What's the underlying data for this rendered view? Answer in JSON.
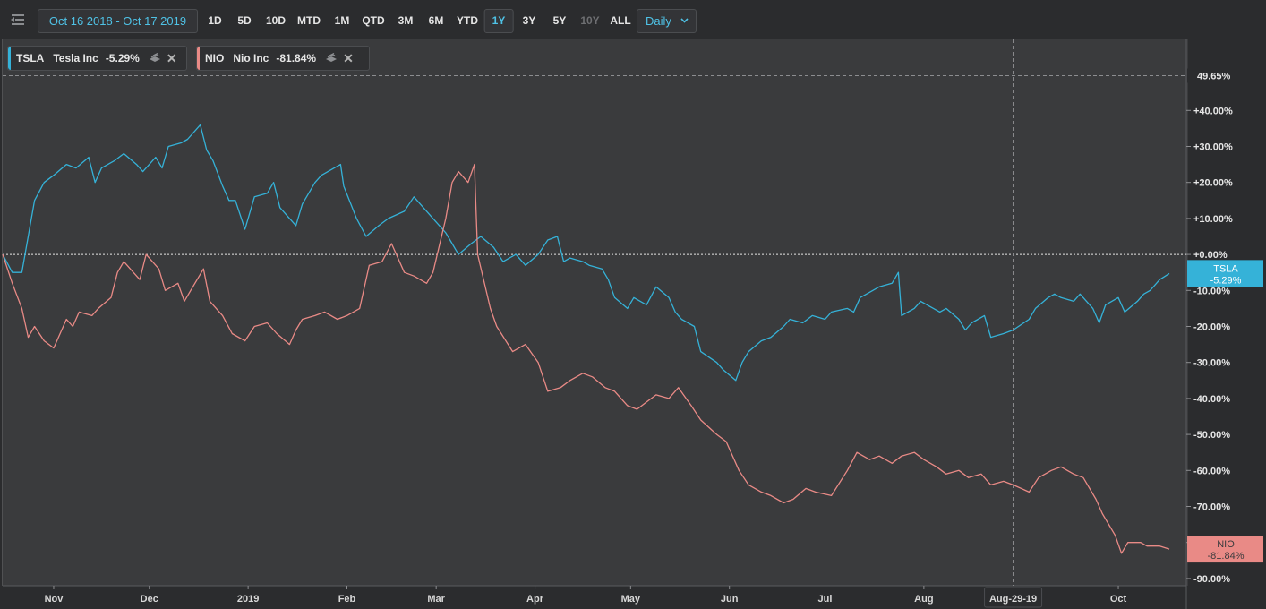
{
  "toolbar": {
    "date_range": "Oct 16 2018 - Oct 17 2019",
    "periods": [
      "1D",
      "5D",
      "10D",
      "MTD",
      "1M",
      "QTD",
      "3M",
      "6M",
      "YTD",
      "1Y",
      "3Y",
      "5Y",
      "10Y",
      "ALL"
    ],
    "active_period": "1Y",
    "disabled_periods": [
      "10Y"
    ],
    "interval": "Daily",
    "accent_color": "#4fc2e6"
  },
  "legend": [
    {
      "symbol": "TSLA",
      "name": "Tesla Inc",
      "change": "-5.29%",
      "color": "#35b2d8"
    },
    {
      "symbol": "NIO",
      "name": "Nio Inc",
      "change": "-81.84%",
      "color": "#e98a86"
    }
  ],
  "chart_data": {
    "type": "line",
    "y_unit": "% change",
    "ylim": [
      -92,
      52
    ],
    "y_ticks": [
      {
        "value": 40,
        "label": "+40.00%"
      },
      {
        "value": 30,
        "label": "+30.00%"
      },
      {
        "value": 20,
        "label": "+20.00%"
      },
      {
        "value": 10,
        "label": "+10.00%"
      },
      {
        "value": 0,
        "label": "+0.00%"
      },
      {
        "value": -10,
        "label": "-10.00%"
      },
      {
        "value": -20,
        "label": "-20.00%"
      },
      {
        "value": -30,
        "label": "-30.00%"
      },
      {
        "value": -40,
        "label": "-40.00%"
      },
      {
        "value": -50,
        "label": "-50.00%"
      },
      {
        "value": -60,
        "label": "-60.00%"
      },
      {
        "value": -70,
        "label": "-70.00%"
      },
      {
        "value": -80,
        "label": "-80.00%"
      },
      {
        "value": -90,
        "label": "-90.00%"
      }
    ],
    "x_range": [
      "2018-10-16",
      "2019-10-17"
    ],
    "x_ticks": [
      {
        "date": "2018-11-01",
        "label": "Nov"
      },
      {
        "date": "2018-12-01",
        "label": "Dec"
      },
      {
        "date": "2019-01-01",
        "label": "2019"
      },
      {
        "date": "2019-02-01",
        "label": "Feb"
      },
      {
        "date": "2019-03-01",
        "label": "Mar"
      },
      {
        "date": "2019-04-01",
        "label": "Apr"
      },
      {
        "date": "2019-05-01",
        "label": "May"
      },
      {
        "date": "2019-06-01",
        "label": "Jun"
      },
      {
        "date": "2019-07-01",
        "label": "Jul"
      },
      {
        "date": "2019-08-01",
        "label": "Aug"
      },
      {
        "date": "2019-10-01",
        "label": "Oct"
      }
    ],
    "crosshair": {
      "date": "2019-08-29",
      "label": "Aug-29-19",
      "value": 49.65,
      "value_label": "49.65%"
    },
    "series": [
      {
        "name": "TSLA",
        "color": "#35b2d8",
        "last_label": "-5.29%",
        "points": [
          [
            "2018-10-16",
            0
          ],
          [
            "2018-10-19",
            -5
          ],
          [
            "2018-10-22",
            -5
          ],
          [
            "2018-10-24",
            5
          ],
          [
            "2018-10-26",
            15
          ],
          [
            "2018-10-29",
            20
          ],
          [
            "2018-11-01",
            22
          ],
          [
            "2018-11-05",
            25
          ],
          [
            "2018-11-08",
            24
          ],
          [
            "2018-11-12",
            27
          ],
          [
            "2018-11-14",
            20
          ],
          [
            "2018-11-16",
            24
          ],
          [
            "2018-11-20",
            26
          ],
          [
            "2018-11-23",
            28
          ],
          [
            "2018-11-27",
            25
          ],
          [
            "2018-11-29",
            23
          ],
          [
            "2018-12-03",
            27
          ],
          [
            "2018-12-05",
            24
          ],
          [
            "2018-12-07",
            30
          ],
          [
            "2018-12-11",
            31
          ],
          [
            "2018-12-13",
            32
          ],
          [
            "2018-12-17",
            36
          ],
          [
            "2018-12-19",
            29
          ],
          [
            "2018-12-21",
            26
          ],
          [
            "2018-12-24",
            19
          ],
          [
            "2018-12-26",
            15
          ],
          [
            "2018-12-28",
            15
          ],
          [
            "2018-12-31",
            7
          ],
          [
            "2019-01-03",
            16
          ],
          [
            "2019-01-07",
            17
          ],
          [
            "2019-01-09",
            20
          ],
          [
            "2019-01-11",
            13
          ],
          [
            "2019-01-14",
            10
          ],
          [
            "2019-01-16",
            8
          ],
          [
            "2019-01-18",
            14
          ],
          [
            "2019-01-22",
            20
          ],
          [
            "2019-01-24",
            22
          ],
          [
            "2019-01-28",
            24
          ],
          [
            "2019-01-30",
            25
          ],
          [
            "2019-01-31",
            19
          ],
          [
            "2019-02-04",
            10
          ],
          [
            "2019-02-07",
            5
          ],
          [
            "2019-02-11",
            8
          ],
          [
            "2019-02-14",
            10
          ],
          [
            "2019-02-19",
            12
          ],
          [
            "2019-02-22",
            16
          ],
          [
            "2019-02-26",
            12
          ],
          [
            "2019-02-28",
            10
          ],
          [
            "2019-03-04",
            6
          ],
          [
            "2019-03-06",
            3
          ],
          [
            "2019-03-08",
            0
          ],
          [
            "2019-03-12",
            3
          ],
          [
            "2019-03-15",
            5
          ],
          [
            "2019-03-19",
            2
          ],
          [
            "2019-03-22",
            -2
          ],
          [
            "2019-03-26",
            0
          ],
          [
            "2019-03-29",
            -3
          ],
          [
            "2019-04-02",
            0
          ],
          [
            "2019-04-05",
            4
          ],
          [
            "2019-04-08",
            5
          ],
          [
            "2019-04-10",
            -2
          ],
          [
            "2019-04-12",
            -1
          ],
          [
            "2019-04-16",
            -2
          ],
          [
            "2019-04-18",
            -3
          ],
          [
            "2019-04-22",
            -4
          ],
          [
            "2019-04-24",
            -7
          ],
          [
            "2019-04-26",
            -12
          ],
          [
            "2019-04-30",
            -15
          ],
          [
            "2019-05-02",
            -12
          ],
          [
            "2019-05-06",
            -14
          ],
          [
            "2019-05-09",
            -9
          ],
          [
            "2019-05-13",
            -12
          ],
          [
            "2019-05-15",
            -16
          ],
          [
            "2019-05-17",
            -18
          ],
          [
            "2019-05-21",
            -20
          ],
          [
            "2019-05-23",
            -27
          ],
          [
            "2019-05-28",
            -30
          ],
          [
            "2019-05-30",
            -32
          ],
          [
            "2019-06-03",
            -35
          ],
          [
            "2019-06-05",
            -30
          ],
          [
            "2019-06-07",
            -27
          ],
          [
            "2019-06-11",
            -24
          ],
          [
            "2019-06-14",
            -23
          ],
          [
            "2019-06-18",
            -20
          ],
          [
            "2019-06-20",
            -18
          ],
          [
            "2019-06-24",
            -19
          ],
          [
            "2019-06-27",
            -17
          ],
          [
            "2019-07-01",
            -18
          ],
          [
            "2019-07-03",
            -16
          ],
          [
            "2019-07-08",
            -15
          ],
          [
            "2019-07-10",
            -16
          ],
          [
            "2019-07-12",
            -12
          ],
          [
            "2019-07-16",
            -10
          ],
          [
            "2019-07-18",
            -9
          ],
          [
            "2019-07-22",
            -8
          ],
          [
            "2019-07-24",
            -5
          ],
          [
            "2019-07-25",
            -17
          ],
          [
            "2019-07-29",
            -15
          ],
          [
            "2019-07-31",
            -13
          ],
          [
            "2019-08-02",
            -14
          ],
          [
            "2019-08-06",
            -16
          ],
          [
            "2019-08-08",
            -15
          ],
          [
            "2019-08-12",
            -18
          ],
          [
            "2019-08-14",
            -21
          ],
          [
            "2019-08-16",
            -19
          ],
          [
            "2019-08-20",
            -17
          ],
          [
            "2019-08-22",
            -23
          ],
          [
            "2019-08-26",
            -22
          ],
          [
            "2019-08-29",
            -21
          ],
          [
            "2019-09-03",
            -18
          ],
          [
            "2019-09-05",
            -15
          ],
          [
            "2019-09-09",
            -12
          ],
          [
            "2019-09-11",
            -11
          ],
          [
            "2019-09-13",
            -12
          ],
          [
            "2019-09-17",
            -13
          ],
          [
            "2019-09-19",
            -11
          ],
          [
            "2019-09-23",
            -15
          ],
          [
            "2019-09-25",
            -19
          ],
          [
            "2019-09-27",
            -14
          ],
          [
            "2019-10-01",
            -12
          ],
          [
            "2019-10-03",
            -16
          ],
          [
            "2019-10-07",
            -13
          ],
          [
            "2019-10-09",
            -11
          ],
          [
            "2019-10-11",
            -10
          ],
          [
            "2019-10-14",
            -7
          ],
          [
            "2019-10-17",
            -5.29
          ]
        ]
      },
      {
        "name": "NIO",
        "color": "#e98a86",
        "last_label": "-81.84%",
        "points": [
          [
            "2018-10-16",
            0
          ],
          [
            "2018-10-19",
            -8
          ],
          [
            "2018-10-22",
            -15
          ],
          [
            "2018-10-24",
            -23
          ],
          [
            "2018-10-26",
            -20
          ],
          [
            "2018-10-29",
            -24
          ],
          [
            "2018-11-01",
            -26
          ],
          [
            "2018-11-05",
            -18
          ],
          [
            "2018-11-07",
            -20
          ],
          [
            "2018-11-09",
            -16
          ],
          [
            "2018-11-13",
            -17
          ],
          [
            "2018-11-15",
            -15
          ],
          [
            "2018-11-19",
            -12
          ],
          [
            "2018-11-21",
            -5
          ],
          [
            "2018-11-23",
            -2
          ],
          [
            "2018-11-26",
            -5
          ],
          [
            "2018-11-28",
            -7
          ],
          [
            "2018-11-30",
            0
          ],
          [
            "2018-12-04",
            -4
          ],
          [
            "2018-12-06",
            -10
          ],
          [
            "2018-12-10",
            -8
          ],
          [
            "2018-12-12",
            -13
          ],
          [
            "2018-12-14",
            -10
          ],
          [
            "2018-12-18",
            -4
          ],
          [
            "2018-12-20",
            -13
          ],
          [
            "2018-12-24",
            -17
          ],
          [
            "2018-12-27",
            -22
          ],
          [
            "2018-12-31",
            -24
          ],
          [
            "2019-01-03",
            -20
          ],
          [
            "2019-01-07",
            -19
          ],
          [
            "2019-01-10",
            -22
          ],
          [
            "2019-01-14",
            -25
          ],
          [
            "2019-01-16",
            -21
          ],
          [
            "2019-01-18",
            -18
          ],
          [
            "2019-01-22",
            -17
          ],
          [
            "2019-01-25",
            -16
          ],
          [
            "2019-01-29",
            -18
          ],
          [
            "2019-02-01",
            -17
          ],
          [
            "2019-02-05",
            -15
          ],
          [
            "2019-02-08",
            -3
          ],
          [
            "2019-02-12",
            -2
          ],
          [
            "2019-02-15",
            3
          ],
          [
            "2019-02-19",
            -5
          ],
          [
            "2019-02-22",
            -6
          ],
          [
            "2019-02-26",
            -8
          ],
          [
            "2019-02-28",
            -5
          ],
          [
            "2019-03-04",
            10
          ],
          [
            "2019-03-06",
            20
          ],
          [
            "2019-03-08",
            23
          ],
          [
            "2019-03-11",
            20
          ],
          [
            "2019-03-13",
            25
          ],
          [
            "2019-03-14",
            0
          ],
          [
            "2019-03-18",
            -15
          ],
          [
            "2019-03-20",
            -20
          ],
          [
            "2019-03-25",
            -27
          ],
          [
            "2019-03-27",
            -26
          ],
          [
            "2019-03-29",
            -25
          ],
          [
            "2019-04-02",
            -30
          ],
          [
            "2019-04-05",
            -38
          ],
          [
            "2019-04-09",
            -37
          ],
          [
            "2019-04-12",
            -35
          ],
          [
            "2019-04-16",
            -33
          ],
          [
            "2019-04-19",
            -34
          ],
          [
            "2019-04-23",
            -37
          ],
          [
            "2019-04-26",
            -38
          ],
          [
            "2019-04-30",
            -42
          ],
          [
            "2019-05-03",
            -43
          ],
          [
            "2019-05-06",
            -41
          ],
          [
            "2019-05-09",
            -39
          ],
          [
            "2019-05-13",
            -40
          ],
          [
            "2019-05-16",
            -37
          ],
          [
            "2019-05-20",
            -42
          ],
          [
            "2019-05-23",
            -46
          ],
          [
            "2019-05-28",
            -50
          ],
          [
            "2019-05-31",
            -52
          ],
          [
            "2019-06-04",
            -60
          ],
          [
            "2019-06-07",
            -64
          ],
          [
            "2019-06-11",
            -66
          ],
          [
            "2019-06-14",
            -67
          ],
          [
            "2019-06-18",
            -69
          ],
          [
            "2019-06-21",
            -68
          ],
          [
            "2019-06-25",
            -65
          ],
          [
            "2019-06-28",
            -66
          ],
          [
            "2019-07-03",
            -67
          ],
          [
            "2019-07-08",
            -60
          ],
          [
            "2019-07-11",
            -55
          ],
          [
            "2019-07-15",
            -57
          ],
          [
            "2019-07-18",
            -56
          ],
          [
            "2019-07-22",
            -58
          ],
          [
            "2019-07-25",
            -56
          ],
          [
            "2019-07-29",
            -55
          ],
          [
            "2019-08-01",
            -57
          ],
          [
            "2019-08-05",
            -59
          ],
          [
            "2019-08-08",
            -61
          ],
          [
            "2019-08-12",
            -60
          ],
          [
            "2019-08-15",
            -62
          ],
          [
            "2019-08-19",
            -61
          ],
          [
            "2019-08-22",
            -64
          ],
          [
            "2019-08-26",
            -63
          ],
          [
            "2019-08-29",
            -64
          ],
          [
            "2019-09-03",
            -66
          ],
          [
            "2019-09-06",
            -62
          ],
          [
            "2019-09-10",
            -60
          ],
          [
            "2019-09-13",
            -59
          ],
          [
            "2019-09-17",
            -61
          ],
          [
            "2019-09-20",
            -62
          ],
          [
            "2019-09-24",
            -68
          ],
          [
            "2019-09-26",
            -72
          ],
          [
            "2019-09-30",
            -78
          ],
          [
            "2019-10-02",
            -83
          ],
          [
            "2019-10-04",
            -80
          ],
          [
            "2019-10-08",
            -80
          ],
          [
            "2019-10-10",
            -81
          ],
          [
            "2019-10-14",
            -81
          ],
          [
            "2019-10-17",
            -81.84
          ]
        ]
      }
    ]
  }
}
